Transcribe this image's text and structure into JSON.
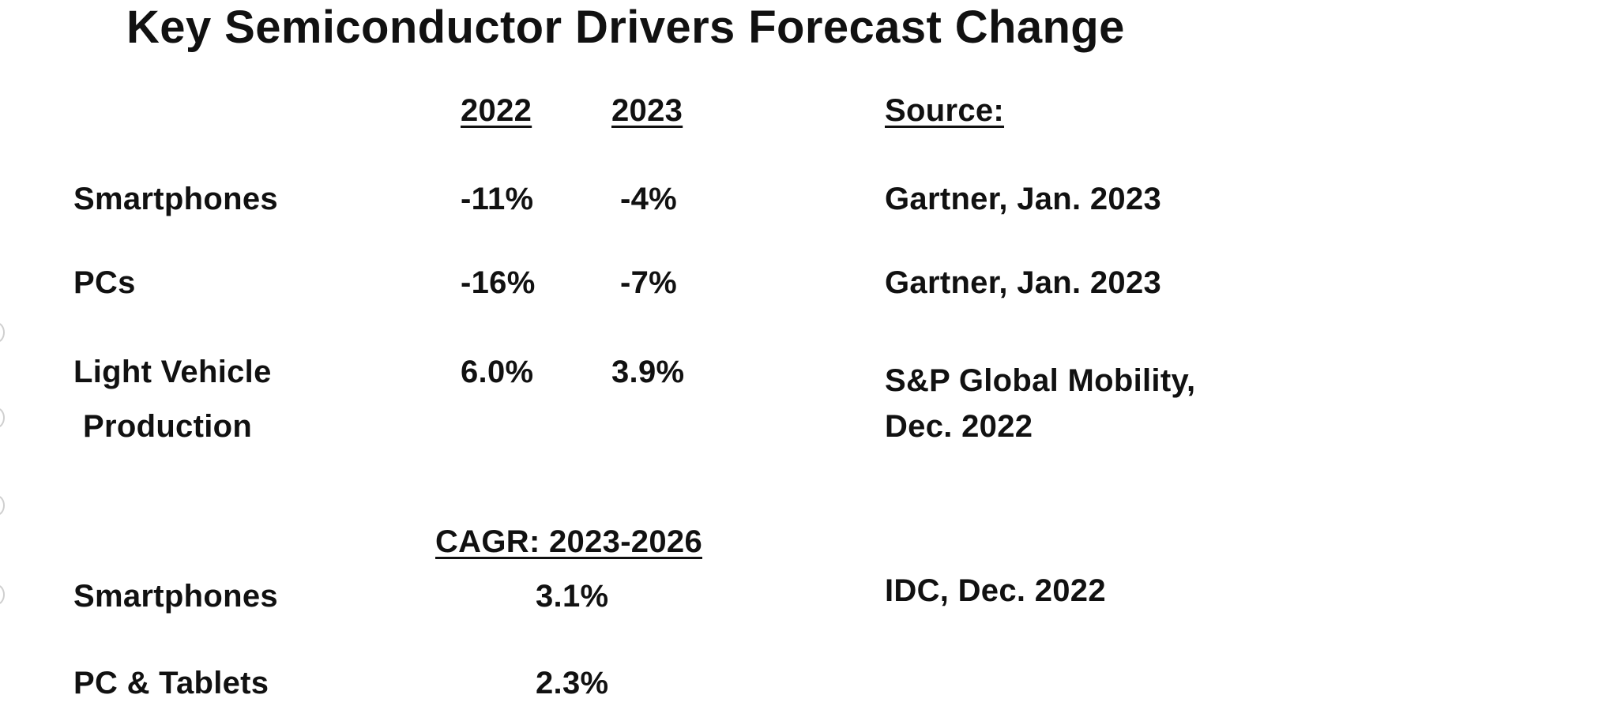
{
  "title": "Key Semiconductor Drivers Forecast Change",
  "headers": {
    "year1": "2022",
    "year2": "2023",
    "source": "Source:"
  },
  "rows": [
    {
      "label": "Smartphones",
      "y2022": "-11%",
      "y2023": "-4%",
      "source": "Gartner, Jan. 2023"
    },
    {
      "label": "PCs",
      "y2022": "-16%",
      "y2023": "-7%",
      "source": "Gartner, Jan. 2023"
    },
    {
      "label_line1": "Light Vehicle",
      "label_line2": "Production",
      "y2022": "6.0%",
      "y2023": "3.9%",
      "source_line1": "S&P Global Mobility,",
      "source_line2": "Dec. 2022"
    }
  ],
  "cagr": {
    "header": "CAGR: 2023-2026",
    "rows": [
      {
        "label": "Smartphones",
        "value": "3.1%",
        "source": "IDC, Dec. 2022"
      },
      {
        "label": "PC & Tablets",
        "value": "2.3%"
      }
    ]
  }
}
